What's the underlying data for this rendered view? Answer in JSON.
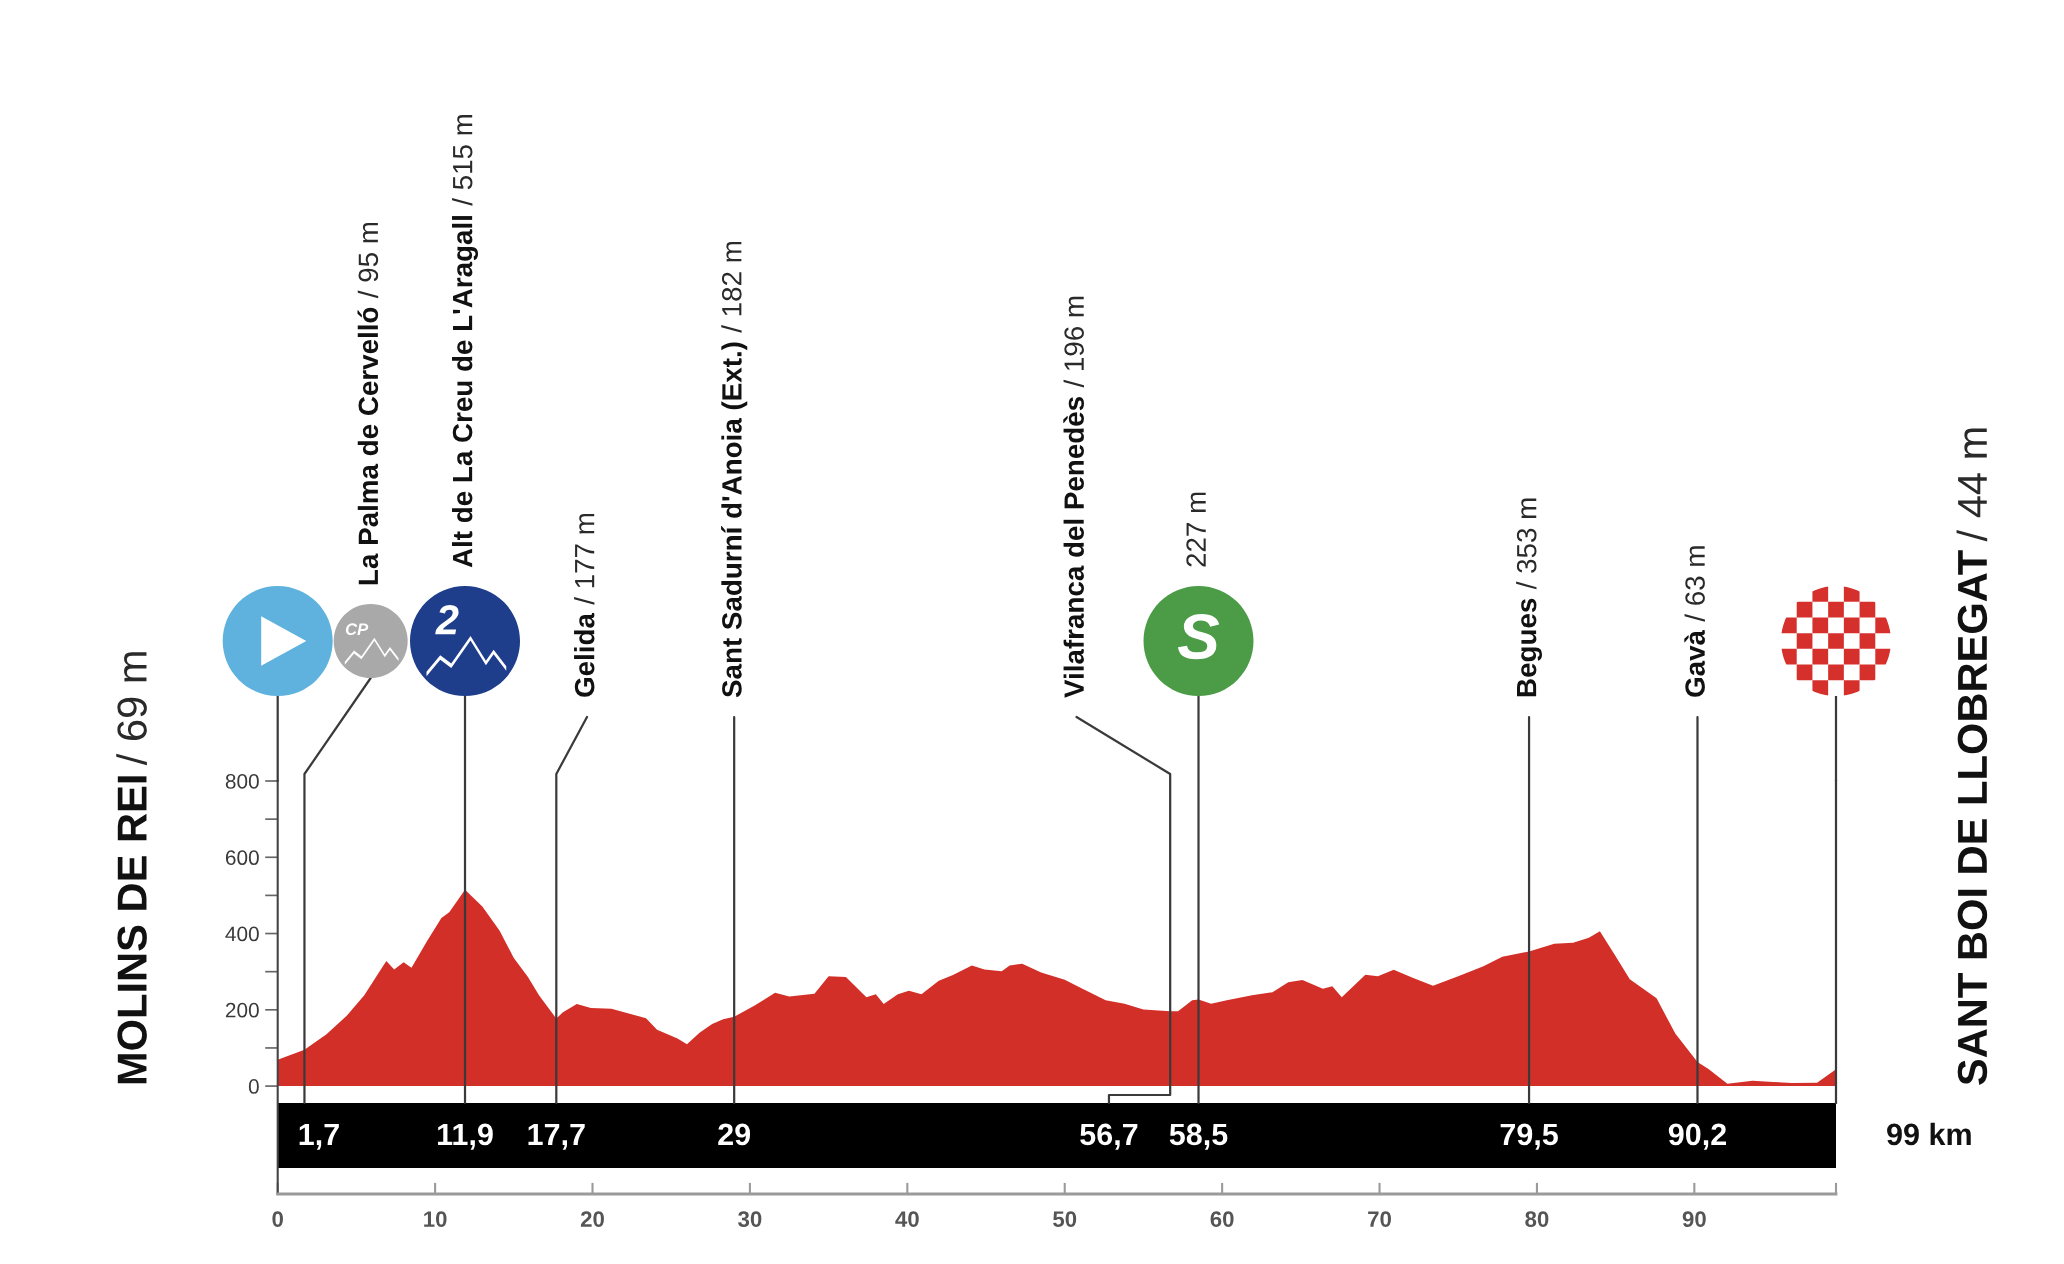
{
  "chart_data": {
    "type": "area",
    "x": [
      0,
      1.7,
      3.1,
      4.4,
      5.5,
      6.9,
      7.4,
      8.0,
      8.5,
      9.5,
      10.4,
      10.9,
      11.9,
      13.0,
      14.1,
      15.0,
      15.9,
      16.6,
      17.7,
      18.1,
      19.0,
      19.9,
      21.2,
      22.3,
      23.4,
      24.1,
      25.4,
      26.0,
      26.8,
      27.6,
      28.3,
      29.0,
      30.3,
      31.6,
      32.5,
      34.1,
      35.0,
      36.1,
      37.4,
      38.0,
      38.5,
      39.4,
      40.1,
      40.9,
      42.0,
      42.9,
      44.1,
      44.9,
      46.0,
      46.5,
      47.3,
      48.5,
      50.0,
      51.0,
      52.6,
      53.8,
      55.0,
      56.7,
      57.2,
      58.1,
      58.5,
      59.3,
      60.3,
      61.9,
      63.2,
      64.2,
      65.1,
      66.4,
      67.0,
      67.6,
      69.1,
      69.9,
      70.9,
      72.1,
      73.4,
      75.0,
      76.6,
      77.8,
      79.5,
      81.1,
      82.3,
      83.3,
      84.0,
      84.9,
      85.9,
      87.6,
      88.8,
      90.2,
      90.9,
      92.1,
      93.7,
      95.0,
      96.2,
      97.8,
      99.0
    ],
    "values": [
      69,
      95,
      136,
      185,
      238,
      328,
      306,
      325,
      310,
      381,
      441,
      456,
      515,
      471,
      407,
      336,
      286,
      238,
      177,
      193,
      215,
      205,
      203,
      190,
      178,
      148,
      125,
      110,
      140,
      163,
      175,
      182,
      211,
      245,
      235,
      242,
      288,
      286,
      233,
      241,
      215,
      241,
      250,
      241,
      276,
      291,
      316,
      306,
      301,
      316,
      321,
      298,
      279,
      258,
      225,
      216,
      201,
      196,
      196,
      225,
      227,
      216,
      225,
      238,
      246,
      272,
      278,
      255,
      262,
      233,
      292,
      288,
      305,
      284,
      263,
      288,
      314,
      339,
      353,
      373,
      376,
      389,
      406,
      347,
      280,
      230,
      137,
      63,
      45,
      6,
      14,
      11,
      8,
      9,
      44
    ],
    "color": "#d22f28",
    "xlim": [
      0,
      99
    ],
    "xticks": [
      0,
      10,
      20,
      30,
      40,
      50,
      60,
      70,
      80,
      90,
      {
        "value": 99,
        "label": null
      }
    ],
    "ylim": [
      -283,
      800
    ],
    "yticks": [
      0,
      {
        "value": 100,
        "label": null
      },
      200,
      {
        "value": 300,
        "label": null
      },
      400,
      {
        "value": 500,
        "label": null
      },
      600,
      {
        "value": 700,
        "label": null
      },
      800
    ],
    "ref_lines": [
      {
        "axis": "x",
        "value": 1.7,
        "label": "1,7"
      },
      {
        "axis": "x",
        "value": 11.9,
        "label": "11,9"
      },
      {
        "axis": "x",
        "value": 17.7,
        "label": "17,7"
      },
      {
        "axis": "x",
        "value": 29,
        "label": "29"
      },
      {
        "axis": "x",
        "value": 56.7,
        "label": "56,7"
      },
      {
        "axis": "x",
        "value": 58.5,
        "label": "58,5"
      },
      {
        "axis": "x",
        "value": 79.5,
        "label": "79,5"
      },
      {
        "axis": "x",
        "value": 90.2,
        "label": "90,2"
      }
    ],
    "annotations": [
      "MOLINS DE REI",
      "/ 69 m",
      "La Palma de Cervelló",
      "/ 95 m",
      "CP",
      "Alt de La Creu de L'Aragall",
      "/ 515 m",
      "2",
      "Gelida",
      "/ 177 m",
      "Sant Sadurní d'Anoia (Ext.)",
      "/ 182 m",
      "Vilafranca del Penedès",
      "/ 196 m",
      "227 m",
      "S",
      "Begues",
      "/ 353 m",
      "Gavà",
      "/ 63 m",
      "SANT BOI DE LLOBREGAT",
      "/ 44 m",
      "99 km"
    ]
  }
}
